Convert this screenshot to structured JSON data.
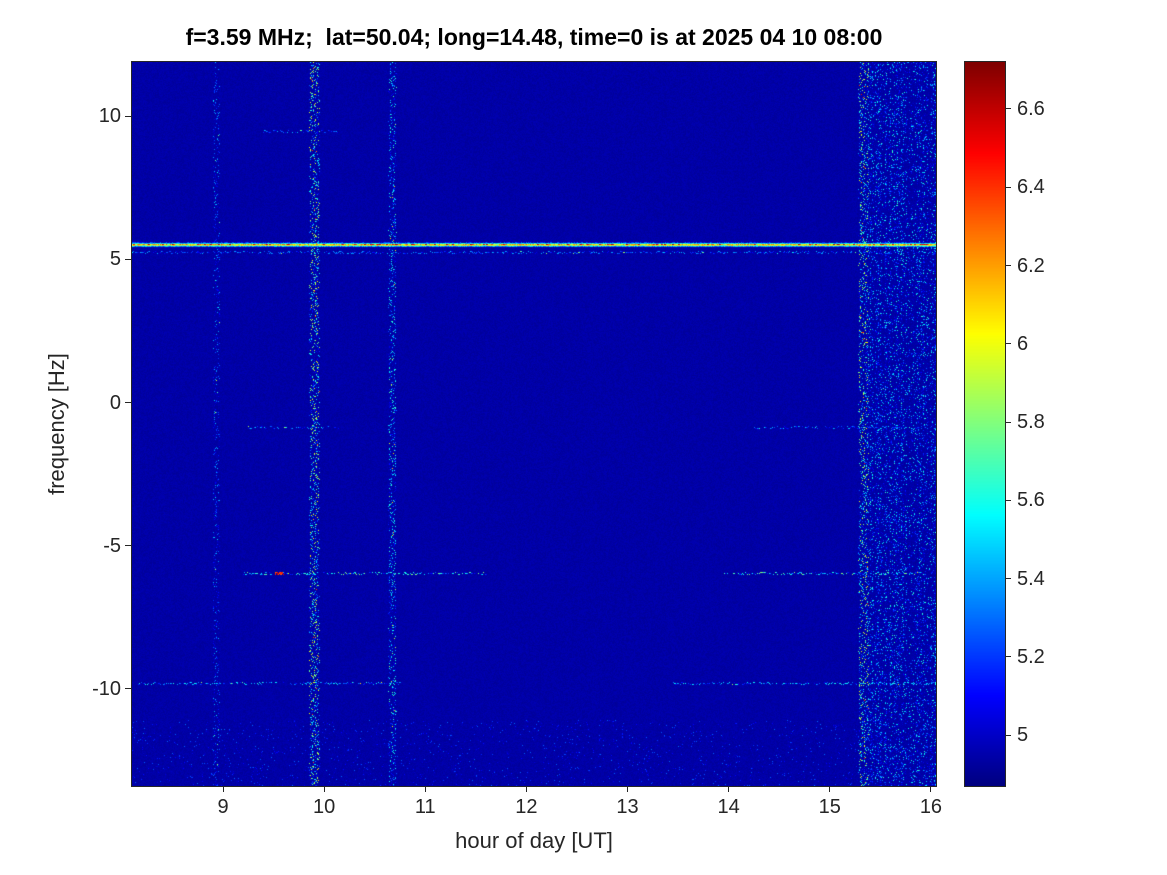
{
  "figure": {
    "background_color": "#ffffff",
    "axis_color": "#262626"
  },
  "chart_data": {
    "type": "heatmap",
    "title": "f=3.59 MHz;  lat=50.04; long=14.48, time=0 is at 2025 04 10 08:00",
    "xlabel": "hour of day [UT]",
    "ylabel": "frequency [Hz]",
    "colormap": "jet",
    "legend": "colorbar-right",
    "grid": false,
    "x_range": [
      8.1,
      16.05
    ],
    "y_range": [
      -13.4,
      11.9
    ],
    "x_ticks": [
      {
        "value": 9,
        "label": "9"
      },
      {
        "value": 10,
        "label": "10"
      },
      {
        "value": 11,
        "label": "11"
      },
      {
        "value": 12,
        "label": "12"
      },
      {
        "value": 13,
        "label": "13"
      },
      {
        "value": 14,
        "label": "14"
      },
      {
        "value": 15,
        "label": "15"
      },
      {
        "value": 16,
        "label": "16"
      }
    ],
    "y_ticks": [
      {
        "value": -10,
        "label": "-10"
      },
      {
        "value": -5,
        "label": "-5"
      },
      {
        "value": 0,
        "label": "0"
      },
      {
        "value": 5,
        "label": "5"
      },
      {
        "value": 10,
        "label": "10"
      }
    ],
    "color_axis": {
      "min": 4.87,
      "max": 6.72
    },
    "colorbar_ticks": [
      {
        "value": 5,
        "label": "5"
      },
      {
        "value": 5.2,
        "label": "5.2"
      },
      {
        "value": 5.4,
        "label": "5.4"
      },
      {
        "value": 5.6,
        "label": "5.6"
      },
      {
        "value": 5.8,
        "label": "5.8"
      },
      {
        "value": 6,
        "label": "6"
      },
      {
        "value": 6.2,
        "label": "6.2"
      },
      {
        "value": 6.4,
        "label": "6.4"
      },
      {
        "value": 6.6,
        "label": "6.6"
      }
    ],
    "background_value": 4.94,
    "features": {
      "horizontal_lines": [
        {
          "freq": 5.55,
          "x_start": 8.1,
          "x_end": 16.05,
          "core_min": 5.85,
          "core_max": 6.35,
          "peak_value": 6.68,
          "red_fraction": 0.1,
          "halo_value": 5.35,
          "description": "strong continuous spectral line near +5.5 Hz, yellow-orange core, cyan halo, occasional red saturation"
        }
      ],
      "dotted_features": [
        {
          "freq": 5.27,
          "value": 5.4,
          "density": 0.55,
          "segments": [
            [
              8.1,
              16.05
            ]
          ]
        },
        {
          "freq": 9.5,
          "value": 5.4,
          "density": 0.5,
          "segments": [
            [
              9.4,
              10.15
            ]
          ]
        },
        {
          "freq": -0.85,
          "value": 5.45,
          "density": 0.5,
          "segments": [
            [
              9.25,
              10.15
            ],
            [
              14.25,
              15.75
            ]
          ]
        },
        {
          "freq": -5.95,
          "value": 5.8,
          "density": 0.6,
          "segments": [
            [
              9.2,
              11.6
            ],
            [
              13.95,
              15.95
            ]
          ],
          "hotspots": [
            {
              "x": 9.55,
              "value": 6.6
            }
          ]
        },
        {
          "freq": -9.8,
          "value": 5.6,
          "density": 0.55,
          "segments": [
            [
              8.15,
              10.75
            ],
            [
              13.45,
              16.05
            ]
          ]
        }
      ],
      "vertical_stripes": [
        {
          "hour": 8.93,
          "strength": 5.35,
          "width_hours": 0.05,
          "density": 0.3
        },
        {
          "hour": 9.9,
          "strength": 5.8,
          "width_hours": 0.08,
          "density": 0.85
        },
        {
          "hour": 10.67,
          "strength": 5.55,
          "width_hours": 0.06,
          "density": 0.55
        },
        {
          "hour": 15.33,
          "strength": 5.8,
          "width_hours": 0.08,
          "density": 0.85
        }
      ],
      "noise_region": {
        "x_start": 15.38,
        "x_end": 16.05,
        "density": 0.28,
        "max_excess": 0.75
      },
      "bottom_noise": {
        "y_start": -11.1,
        "y_end": -13.4,
        "density": 0.03,
        "value_min": 4.96,
        "value_max": 5.3
      }
    }
  }
}
